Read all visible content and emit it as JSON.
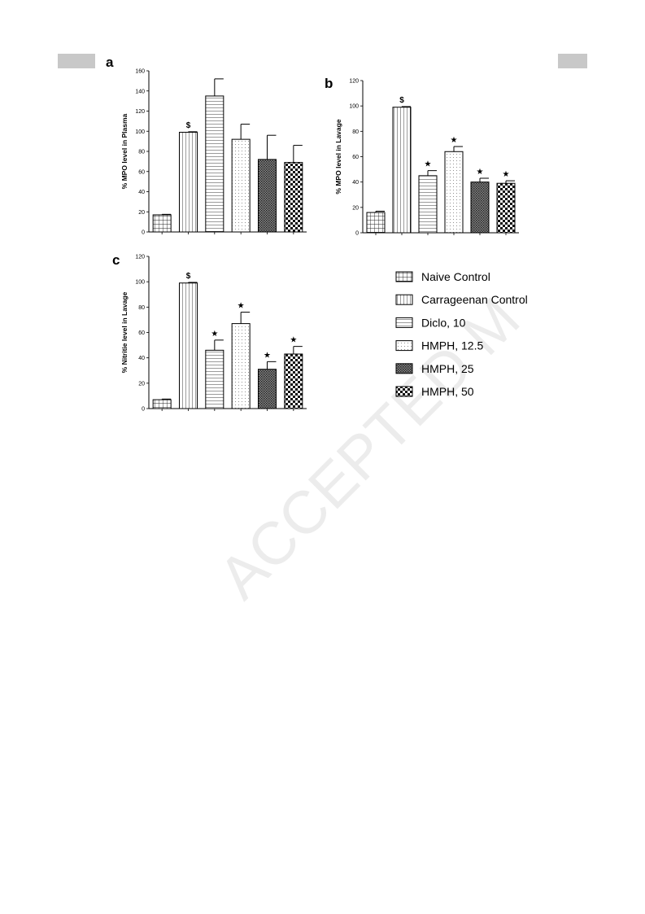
{
  "legend": [
    {
      "name": "Naive Control",
      "pattern": "grid"
    },
    {
      "name": "Carrageenan Control",
      "pattern": "vlines"
    },
    {
      "name": "Diclo, 10",
      "pattern": "hlines"
    },
    {
      "name": "HMPH, 12.5",
      "pattern": "dots"
    },
    {
      "name": "HMPH, 25",
      "pattern": "dense"
    },
    {
      "name": "HMPH, 50",
      "pattern": "checker"
    }
  ],
  "watermark": "ACCEPTED M",
  "chart_data": [
    {
      "type": "bar",
      "panel": "a",
      "y_label": "% MPO level in Plasma",
      "values": [
        17,
        99,
        135,
        92,
        72,
        69
      ],
      "errors": [
        0.5,
        0.5,
        17,
        15,
        24,
        17
      ],
      "annotations": [
        null,
        "$",
        null,
        null,
        null,
        null
      ],
      "ylim": [
        0,
        160
      ],
      "yticks": [
        0,
        20,
        40,
        60,
        80,
        100,
        120,
        140,
        160
      ]
    },
    {
      "type": "bar",
      "panel": "b",
      "y_label": "% MPO level in Lavage",
      "values": [
        16,
        99,
        45,
        64,
        40,
        39
      ],
      "errors": [
        1,
        0.5,
        4,
        4,
        3,
        2
      ],
      "annotations": [
        null,
        "$",
        "★",
        "★",
        "★",
        "★"
      ],
      "ylim": [
        0,
        120
      ],
      "yticks": [
        0,
        20,
        40,
        60,
        80,
        100,
        120
      ]
    },
    {
      "type": "bar",
      "panel": "c",
      "y_label": "% Nitritie level in Lavage",
      "values": [
        7,
        99,
        46,
        67,
        31,
        43
      ],
      "errors": [
        0.5,
        0.5,
        8,
        9,
        6,
        6
      ],
      "annotations": [
        null,
        "$",
        "★",
        "★",
        "★",
        "★"
      ],
      "ylim": [
        0,
        120
      ],
      "yticks": [
        0,
        20,
        40,
        60,
        80,
        100,
        120
      ]
    }
  ]
}
